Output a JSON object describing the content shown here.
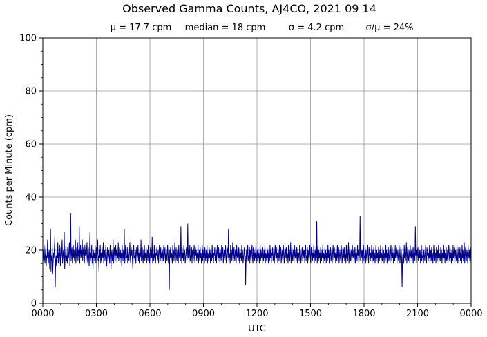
{
  "chart_data": {
    "type": "line",
    "title": "Observed Gamma Counts, AJ4CO, 2021 09 14",
    "stats": [
      "μ = 17.7 cpm",
      "median = 18 cpm",
      "σ = 4.2 cpm",
      "σ/μ = 24%"
    ],
    "xlabel": "UTC",
    "ylabel": "Counts per Minute (cpm)",
    "x_ticks": [
      "0000",
      "0300",
      "0600",
      "0900",
      "1200",
      "1500",
      "1800",
      "2100",
      "0000"
    ],
    "y_ticks": [
      "0",
      "20",
      "40",
      "60",
      "80",
      "100"
    ],
    "xlim": [
      0,
      24
    ],
    "ylim": [
      0,
      100
    ],
    "grid": true,
    "line_color": "#00008b",
    "series": [
      {
        "values": [
          18,
          20,
          16,
          22,
          17,
          15,
          19,
          21,
          14,
          18,
          17,
          24,
          16,
          15,
          19,
          20,
          13,
          17,
          28,
          12,
          18,
          16,
          22,
          11,
          15,
          19,
          17,
          21,
          25,
          6,
          16,
          18,
          14,
          20,
          17,
          23,
          15,
          19,
          16,
          22,
          18,
          14,
          21,
          17,
          19,
          24,
          15,
          18,
          20,
          16,
          27,
          13,
          17,
          19,
          22,
          16,
          18,
          15,
          21,
          19,
          17,
          20,
          23,
          14,
          18,
          34,
          16,
          19,
          21,
          15,
          18,
          22,
          17,
          20,
          16,
          19,
          24,
          15,
          18,
          21,
          17,
          23,
          16,
          20,
          18,
          29,
          15,
          19,
          22,
          17,
          20,
          18,
          24,
          16,
          19,
          21,
          17,
          15,
          22,
          18,
          20,
          16,
          19,
          23,
          17,
          15,
          21,
          18,
          14,
          20,
          27,
          16,
          19,
          17,
          22,
          15,
          18,
          13,
          20,
          17,
          19,
          16,
          22,
          18,
          15,
          21,
          17,
          19,
          24,
          16,
          18,
          12,
          20,
          17,
          22,
          15,
          19,
          16,
          21,
          18,
          17,
          23,
          15,
          19,
          20,
          16,
          18,
          22,
          17,
          14,
          19,
          21,
          16,
          18,
          20,
          17,
          15,
          22,
          19,
          13,
          18,
          20,
          16,
          17,
          24,
          15,
          19,
          21,
          17,
          16,
          22,
          18,
          20,
          15,
          19,
          17,
          23,
          16,
          18,
          21,
          15,
          20,
          17,
          19,
          14,
          22,
          18,
          16,
          20,
          17,
          28,
          15,
          19,
          22,
          16,
          18,
          17,
          21,
          15,
          20,
          18,
          16,
          19,
          23,
          17,
          15,
          21,
          18,
          20,
          16,
          13,
          19,
          22,
          17,
          18,
          16,
          20,
          15,
          19,
          21,
          17,
          18,
          22,
          16,
          19,
          15,
          20,
          17,
          18,
          24,
          16,
          19,
          21,
          17,
          15,
          20,
          18,
          22,
          16,
          19,
          17,
          21,
          15,
          18,
          20,
          16,
          22,
          17,
          19,
          15,
          18,
          21,
          16,
          20,
          17,
          25,
          15,
          19,
          18,
          16,
          22,
          17,
          20,
          15,
          19,
          18,
          21,
          16,
          17,
          20,
          15,
          19,
          22,
          18,
          16,
          21,
          17,
          19,
          15,
          20,
          18,
          16,
          22,
          17,
          19,
          21,
          15,
          18,
          20,
          17,
          16,
          22,
          19,
          15,
          18,
          5,
          20,
          17,
          21,
          16,
          19,
          18,
          15,
          22,
          17,
          20,
          16,
          19,
          23,
          15,
          18,
          21,
          17,
          16,
          20,
          19,
          15,
          22,
          18,
          17,
          20,
          16,
          29,
          18,
          15,
          21,
          17,
          19,
          16,
          22,
          18,
          20,
          15,
          17,
          19,
          21,
          16,
          18,
          30,
          17,
          20,
          15,
          19,
          22,
          16,
          18,
          17,
          21,
          15,
          20,
          18,
          16,
          19,
          22,
          17,
          15,
          21,
          18,
          20,
          16,
          19,
          17,
          22,
          15,
          18,
          20,
          16,
          21,
          17,
          19,
          15,
          18,
          22,
          16,
          20,
          17,
          19,
          15,
          21,
          18,
          16,
          20,
          17,
          22,
          15,
          19,
          18,
          16,
          21,
          17,
          20,
          15,
          19,
          18,
          16,
          22,
          17,
          20,
          15,
          19,
          18,
          21,
          16,
          17,
          20,
          15,
          19,
          22,
          18,
          16,
          21,
          17,
          19,
          15,
          20,
          18,
          16,
          22,
          17,
          19,
          21,
          15,
          18,
          20,
          17,
          16,
          22,
          19,
          15,
          18,
          21,
          20,
          17,
          28,
          16,
          19,
          18,
          15,
          22,
          17,
          20,
          16,
          19,
          23,
          15,
          18,
          21,
          17,
          16,
          20,
          19,
          15,
          22,
          18,
          17,
          20,
          16,
          21,
          18,
          15,
          21,
          17,
          19,
          16,
          22,
          18,
          20,
          15,
          17,
          19,
          21,
          16,
          18,
          7,
          17,
          20,
          15,
          19,
          22,
          16,
          18,
          17,
          21,
          15,
          20,
          18,
          16,
          19,
          22,
          17,
          15,
          21,
          18,
          20,
          16,
          19,
          17,
          22,
          15,
          18,
          20,
          16,
          21,
          17,
          19,
          15,
          18,
          22,
          16,
          20,
          17,
          19,
          15,
          21,
          18,
          16,
          20,
          17,
          22,
          15,
          19,
          18,
          16,
          21,
          17,
          20,
          15,
          19,
          18,
          16,
          22,
          17,
          20,
          15,
          19,
          18,
          21,
          16,
          17,
          20,
          15,
          19,
          22,
          18,
          16,
          21,
          17,
          19,
          15,
          20,
          18,
          16,
          22,
          17,
          19,
          21,
          15,
          18,
          20,
          17,
          16,
          22,
          19,
          15,
          18,
          21,
          20,
          17,
          21,
          16,
          19,
          18,
          15,
          22,
          17,
          20,
          16,
          19,
          23,
          15,
          18,
          21,
          17,
          16,
          20,
          19,
          15,
          22,
          18,
          17,
          20,
          16,
          21,
          18,
          15,
          21,
          17,
          19,
          16,
          22,
          18,
          20,
          15,
          17,
          19,
          21,
          16,
          18,
          20,
          17,
          20,
          15,
          19,
          22,
          16,
          18,
          17,
          21,
          15,
          20,
          18,
          16,
          19,
          22,
          17,
          15,
          21,
          18,
          20,
          16,
          19,
          17,
          22,
          15,
          18,
          20,
          16,
          21,
          17,
          31,
          15,
          18,
          22,
          16,
          20,
          17,
          19,
          15,
          21,
          18,
          16,
          20,
          17,
          22,
          15,
          19,
          18,
          16,
          21,
          17,
          20,
          15,
          19,
          18,
          16,
          22,
          17,
          20,
          15,
          19,
          18,
          21,
          16,
          17,
          20,
          15,
          19,
          22,
          18,
          16,
          21,
          17,
          19,
          15,
          20,
          18,
          16,
          22,
          17,
          19,
          21,
          15,
          18,
          20,
          17,
          16,
          22,
          19,
          15,
          18,
          21,
          20,
          17,
          21,
          16,
          19,
          18,
          15,
          22,
          17,
          20,
          16,
          19,
          23,
          15,
          18,
          21,
          17,
          16,
          20,
          19,
          15,
          22,
          18,
          17,
          20,
          16,
          21,
          18,
          15,
          21,
          17,
          19,
          16,
          22,
          18,
          20,
          15,
          17,
          19,
          33,
          16,
          18,
          20,
          17,
          20,
          15,
          19,
          22,
          16,
          18,
          17,
          21,
          15,
          20,
          18,
          16,
          19,
          22,
          17,
          15,
          21,
          18,
          20,
          16,
          19,
          17,
          22,
          15,
          18,
          20,
          16,
          21,
          17,
          19,
          15,
          18,
          22,
          16,
          20,
          17,
          19,
          15,
          21,
          18,
          16,
          20,
          17,
          22,
          15,
          19,
          18,
          16,
          21,
          17,
          20,
          15,
          19,
          18,
          16,
          22,
          17,
          20,
          15,
          19,
          18,
          21,
          16,
          17,
          20,
          15,
          19,
          22,
          18,
          16,
          21,
          17,
          19,
          15,
          20,
          18,
          16,
          22,
          17,
          19,
          21,
          15,
          18,
          20,
          17,
          16,
          22,
          19,
          15,
          18,
          21,
          20,
          17,
          6,
          16,
          19,
          18,
          15,
          22,
          17,
          20,
          16,
          19,
          23,
          15,
          18,
          21,
          17,
          16,
          20,
          19,
          15,
          22,
          18,
          17,
          20,
          16,
          21,
          18,
          15,
          21,
          17,
          19,
          16,
          29,
          18,
          20,
          15,
          17,
          19,
          21,
          16,
          18,
          20,
          17,
          20,
          15,
          19,
          22,
          16,
          18,
          17,
          21,
          15,
          20,
          18,
          16,
          19,
          22,
          17,
          15,
          21,
          18,
          20,
          16,
          19,
          17,
          22,
          15,
          18,
          20,
          16,
          21,
          17,
          19,
          15,
          18,
          22,
          16,
          20,
          17,
          19,
          15,
          21,
          18,
          16,
          20,
          17,
          22,
          15,
          19,
          18,
          16,
          21,
          17,
          20,
          15,
          19,
          18,
          16,
          22,
          17,
          20,
          15,
          19,
          18,
          21,
          16,
          17,
          20,
          15,
          19,
          22,
          18,
          16,
          21,
          17,
          19,
          15,
          20,
          18,
          16,
          22,
          17,
          19,
          21,
          15,
          18,
          20,
          17,
          16,
          22,
          19,
          15,
          18,
          21,
          20,
          17,
          21,
          16,
          19,
          18,
          15,
          22,
          17,
          20,
          16,
          19,
          23,
          15,
          18,
          21,
          17,
          16,
          20,
          19,
          15,
          22,
          18,
          17,
          20,
          16,
          21,
          18,
          15
        ]
      }
    ]
  }
}
